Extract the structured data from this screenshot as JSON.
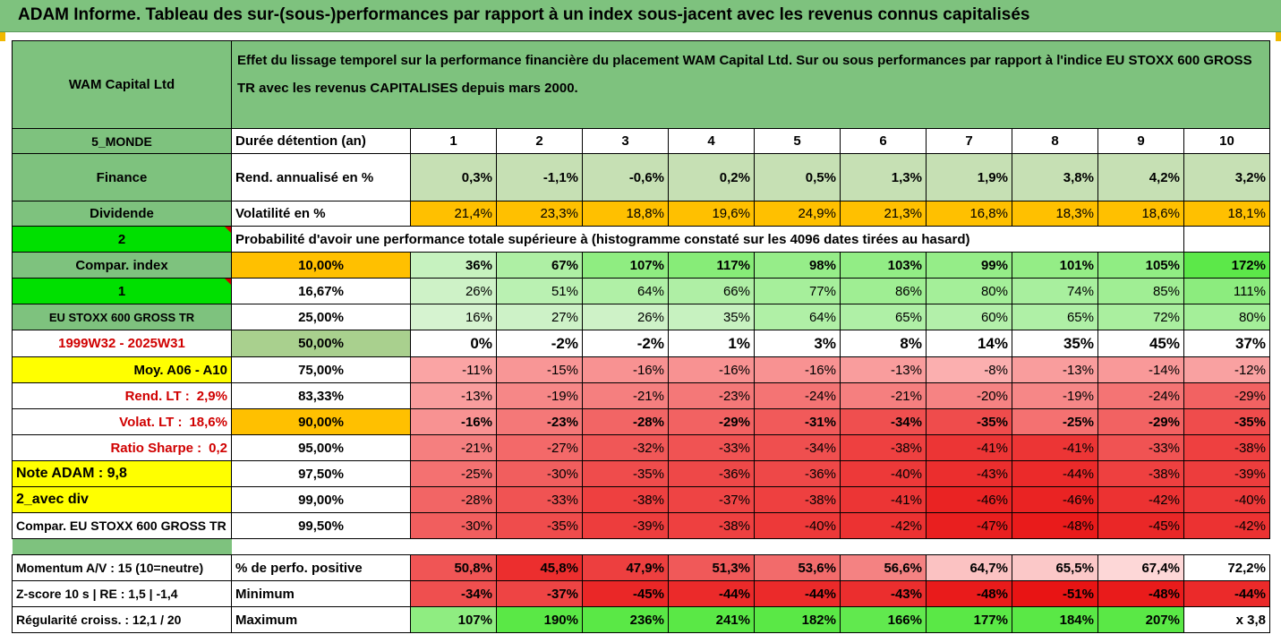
{
  "banner": "ADAM Informe. Tableau des sur-(sous-)performances par rapport à un index sous-jacent avec les revenus connus capitalisés",
  "header": {
    "company": "WAM Capital Ltd",
    "description": "Effet du lissage temporel sur la performance financière du placement WAM Capital Ltd. Sur ou sous performances par rapport à l'indice EU STOXX 600 GROSS TR avec les revenus CAPITALISES depuis mars 2000."
  },
  "left": {
    "region": "5_MONDE",
    "sector": "Finance",
    "dividend": "Dividende",
    "num2": "2",
    "compar": "Compar. index",
    "num1": "1",
    "index": "EU STOXX 600 GROSS TR",
    "period": "1999W32 - 2025W31",
    "moy": "Moy. A06 - A10",
    "rend_label": "Rend. LT :",
    "rend_value": "2,9%",
    "volat_label": "Volat. LT :",
    "volat_value": "18,6%",
    "sharpe_label": "Ratio Sharpe :",
    "sharpe_value": "0,2",
    "note": "Note ADAM : 9,8",
    "avec_div": "2_avec div",
    "compar_full": "Compar. EU STOXX 600 GROSS TR"
  },
  "row_labels": {
    "duree": "Durée détention (an)",
    "rend": "Rend. annualisé en %",
    "volat": "Volatilité en %",
    "proba": "Probabilité d'avoir une performance totale supérieure à (histogramme constaté sur les 4096 dates tirées au hasard)"
  },
  "years": [
    "1",
    "2",
    "3",
    "4",
    "5",
    "6",
    "7",
    "8",
    "9",
    "10"
  ],
  "rend": [
    "0,3%",
    "-1,1%",
    "-0,6%",
    "0,2%",
    "0,5%",
    "1,3%",
    "1,9%",
    "3,8%",
    "4,2%",
    "3,2%"
  ],
  "volat": [
    "21,4%",
    "23,3%",
    "18,8%",
    "19,6%",
    "24,9%",
    "21,3%",
    "16,8%",
    "18,3%",
    "18,6%",
    "18,1%"
  ],
  "percentile_rows": [
    {
      "pct": "10,00%",
      "values": [
        "36%",
        "67%",
        "107%",
        "117%",
        "98%",
        "103%",
        "99%",
        "101%",
        "105%",
        "172%"
      ]
    },
    {
      "pct": "16,67%",
      "values": [
        "26%",
        "51%",
        "64%",
        "66%",
        "77%",
        "86%",
        "80%",
        "74%",
        "85%",
        "111%"
      ]
    },
    {
      "pct": "25,00%",
      "values": [
        "16%",
        "27%",
        "26%",
        "35%",
        "64%",
        "65%",
        "60%",
        "65%",
        "72%",
        "80%"
      ]
    },
    {
      "pct": "50,00%",
      "values": [
        "0%",
        "-2%",
        "-2%",
        "1%",
        "3%",
        "8%",
        "14%",
        "35%",
        "45%",
        "37%"
      ]
    },
    {
      "pct": "75,00%",
      "values": [
        "-11%",
        "-15%",
        "-16%",
        "-16%",
        "-16%",
        "-13%",
        "-8%",
        "-13%",
        "-14%",
        "-12%"
      ]
    },
    {
      "pct": "83,33%",
      "values": [
        "-13%",
        "-19%",
        "-21%",
        "-23%",
        "-24%",
        "-21%",
        "-20%",
        "-19%",
        "-24%",
        "-29%"
      ]
    },
    {
      "pct": "90,00%",
      "values": [
        "-16%",
        "-23%",
        "-28%",
        "-29%",
        "-31%",
        "-34%",
        "-35%",
        "-25%",
        "-29%",
        "-35%"
      ]
    },
    {
      "pct": "95,00%",
      "values": [
        "-21%",
        "-27%",
        "-32%",
        "-33%",
        "-34%",
        "-38%",
        "-41%",
        "-41%",
        "-33%",
        "-38%"
      ]
    },
    {
      "pct": "97,50%",
      "values": [
        "-25%",
        "-30%",
        "-35%",
        "-36%",
        "-36%",
        "-40%",
        "-43%",
        "-44%",
        "-38%",
        "-39%"
      ]
    },
    {
      "pct": "99,00%",
      "values": [
        "-28%",
        "-33%",
        "-38%",
        "-37%",
        "-38%",
        "-41%",
        "-46%",
        "-46%",
        "-42%",
        "-40%"
      ]
    },
    {
      "pct": "99,50%",
      "values": [
        "-30%",
        "-35%",
        "-39%",
        "-38%",
        "-40%",
        "-42%",
        "-47%",
        "-48%",
        "-45%",
        "-42%"
      ]
    }
  ],
  "footer": [
    {
      "left": "Momentum A/V : 15 (10=neutre)",
      "label": "% de perfo. positive",
      "values": [
        "50,8%",
        "45,8%",
        "47,9%",
        "51,3%",
        "53,6%",
        "56,6%",
        "64,7%",
        "65,5%",
        "67,4%",
        "72,2%"
      ]
    },
    {
      "left": "Z-score 10 s  |  RE : 1,5  | -1,4",
      "label": "Minimum",
      "values": [
        "-34%",
        "-37%",
        "-45%",
        "-44%",
        "-44%",
        "-43%",
        "-48%",
        "-51%",
        "-48%",
        "-44%"
      ]
    },
    {
      "left": "Régularité croiss. : 12,1 / 20",
      "label": "Maximum",
      "values": [
        "107%",
        "190%",
        "236%",
        "241%",
        "182%",
        "166%",
        "177%",
        "184%",
        "207%",
        "x 3,8"
      ]
    }
  ],
  "colors": {
    "green_header": "#7ec27e",
    "bright_green": "#00e000",
    "yellow": "#ffff00",
    "orange": "#ffc000",
    "light_olive": "#c6e0b4",
    "olive_50": "#a9d08e"
  }
}
